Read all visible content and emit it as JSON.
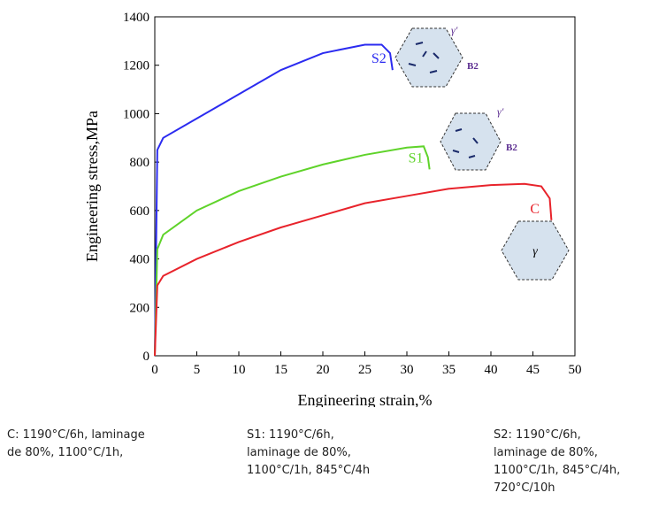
{
  "chart_data": {
    "type": "line",
    "x_label": "Engineering strain,%",
    "y_label": "Engineering stress,MPa",
    "xlim": [
      0,
      50
    ],
    "xticks": [
      0,
      5,
      10,
      15,
      20,
      25,
      30,
      35,
      40,
      45,
      50
    ],
    "ylim": [
      0,
      1400
    ],
    "yticks": [
      0,
      200,
      400,
      600,
      800,
      1000,
      1200,
      1400
    ],
    "series": [
      {
        "name": "S2",
        "color": "#2b2bf0",
        "x": [
          0,
          0.3,
          1,
          5,
          10,
          15,
          20,
          25,
          27,
          28,
          28.3
        ],
        "values": [
          0,
          850,
          900,
          980,
          1080,
          1180,
          1250,
          1285,
          1285,
          1250,
          1180
        ]
      },
      {
        "name": "S1",
        "color": "#5fd32a",
        "x": [
          0,
          0.3,
          1,
          5,
          10,
          15,
          20,
          25,
          30,
          32,
          32.5,
          32.7
        ],
        "values": [
          0,
          440,
          500,
          600,
          680,
          740,
          790,
          830,
          860,
          865,
          820,
          770
        ]
      },
      {
        "name": "C",
        "color": "#e8232b",
        "x": [
          0,
          0.3,
          1,
          5,
          10,
          15,
          20,
          25,
          30,
          35,
          40,
          44,
          46,
          47,
          47.2
        ],
        "values": [
          0,
          290,
          330,
          400,
          470,
          530,
          580,
          630,
          660,
          690,
          705,
          710,
          700,
          650,
          560
        ]
      }
    ],
    "annotations": [
      "γ'",
      "B2",
      "γ'",
      "B2",
      "γ"
    ]
  },
  "captions": [
    [
      "C: 1190°C/6h, laminage",
      "de 80%, 1100°C/1h,"
    ],
    [
      "S1: 1190°C/6h,",
      "laminage de 80%,",
      "1100°C/1h, 845°C/4h"
    ],
    [
      "S2: 1190°C/6h,",
      "laminage de 80%,",
      "1100°C/1h, 845°C/4h,",
      "720°C/10h"
    ]
  ]
}
